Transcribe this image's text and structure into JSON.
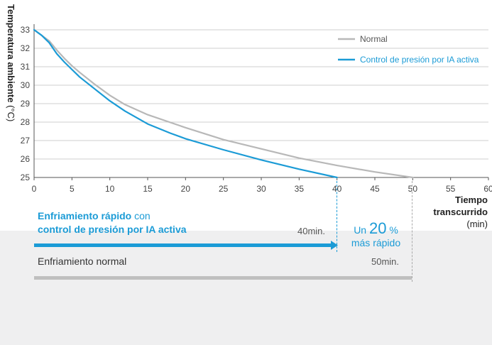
{
  "chart_data": {
    "type": "line",
    "xlabel_line1": "Tiempo",
    "xlabel_line2": "transcurrido",
    "xlabel_unit": "(min)",
    "ylabel": "Temperatura ambiente",
    "ylabel_unit": "(°C)",
    "xlim": [
      0,
      60
    ],
    "ylim": [
      25,
      33
    ],
    "xticks": [
      0,
      5,
      10,
      15,
      20,
      25,
      30,
      35,
      40,
      45,
      50,
      55,
      60
    ],
    "yticks": [
      25,
      26,
      27,
      28,
      29,
      30,
      31,
      32,
      33
    ],
    "grid": "horizontal",
    "legend_position": "top-right",
    "series": [
      {
        "name": "Normal",
        "color": "#b8b8b8",
        "x": [
          0,
          2,
          3,
          4,
          5,
          6,
          8,
          10,
          12,
          15,
          20,
          25,
          30,
          35,
          40,
          45,
          50
        ],
        "y": [
          33,
          32.4,
          31.9,
          31.45,
          31.05,
          30.7,
          30.05,
          29.45,
          28.95,
          28.4,
          27.7,
          27.05,
          26.55,
          26.05,
          25.65,
          25.3,
          25
        ]
      },
      {
        "name": "Control de presión por IA activa",
        "color": "#1b9bd6",
        "x": [
          0,
          1,
          2,
          3,
          4,
          5,
          6,
          8,
          10,
          12,
          15,
          18,
          20,
          25,
          30,
          35,
          40
        ],
        "y": [
          33,
          32.7,
          32.3,
          31.7,
          31.25,
          30.85,
          30.45,
          29.8,
          29.15,
          28.6,
          27.9,
          27.4,
          27.1,
          26.5,
          25.95,
          25.45,
          25
        ]
      }
    ]
  },
  "comparison": {
    "normal_label": "Enfriamiento normal",
    "normal_value": "50min.",
    "fast_label_bold_1": "Enfriamiento rápido",
    "fast_label_plain": "con",
    "fast_label_bold_2": "control de presión por IA activa",
    "fast_value": "40min.",
    "gain_prefix": "Un",
    "gain_value": "20",
    "gain_unit": "%",
    "gain_suffix": "más rápido"
  }
}
